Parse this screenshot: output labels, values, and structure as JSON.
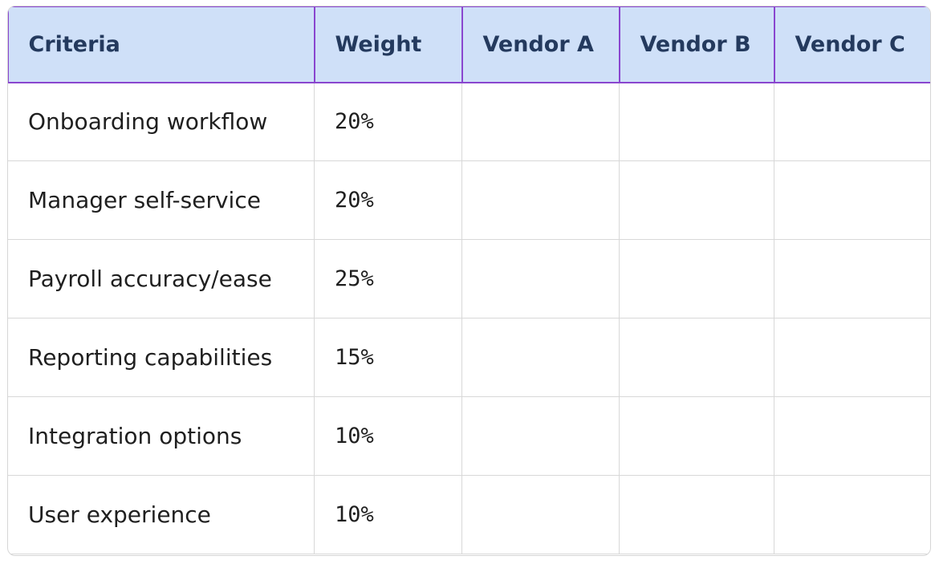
{
  "table": {
    "header": [
      "Criteria",
      "Weight",
      "Vendor A",
      "Vendor B",
      "Vendor C"
    ],
    "rows": [
      [
        "Onboarding workflow",
        "20%"
      ],
      [
        "Manager self-service",
        "20%"
      ],
      [
        "Payroll accuracy/ease",
        "25%"
      ],
      [
        "Reporting capabilities",
        "15%"
      ],
      [
        "Integration options",
        "10%"
      ],
      [
        "User experience",
        "10%"
      ]
    ]
  }
}
